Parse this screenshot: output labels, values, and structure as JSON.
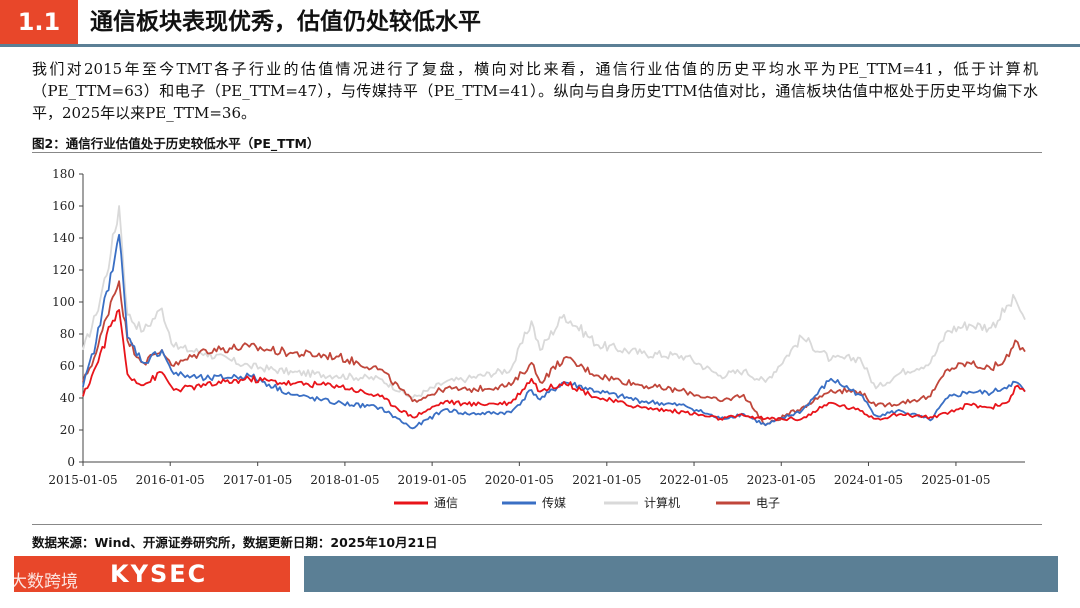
{
  "header": {
    "section_number": "1.1",
    "title": "通信板块表现优秀，估值仍处较低水平"
  },
  "intro_text": "我们对2015年至今TMT各子行业的估值情况进行了复盘，横向对比来看，通信行业估值的历史平均水平为PE_TTM=41，低于计算机（PE_TTM=63）和电子（PE_TTM=47），与传媒持平（PE_TTM=41）。纵向与自身历史TTM估值对比，通信板块估值中枢处于历史平均偏下水平，2025年以来PE_TTM=36。",
  "figure_caption": "图2：通信行业估值处于历史较低水平（PE_TTM）",
  "source_text": "数据来源：Wind、开源证券研究所，数据更新日期：2025年10月21日",
  "footer": {
    "brand": "KYSEC",
    "watermark": "大数跨境"
  },
  "colors": {
    "accent": "#e8472a",
    "bar": "#5b7f95",
    "tongxin": "#e8141a",
    "chuanmei": "#3a6fc4",
    "jisuanji": "#d9d9d9",
    "dianzi": "#c0463a"
  },
  "chart_data": {
    "type": "line",
    "title": "",
    "xlabel": "",
    "ylabel": "",
    "ylim": [
      0,
      180
    ],
    "yticks": [
      0,
      20,
      40,
      60,
      80,
      100,
      120,
      140,
      160,
      180
    ],
    "xlim": [
      "2015-01-05",
      "2025-10-21"
    ],
    "xticks": [
      "2015-01-05",
      "2016-01-05",
      "2017-01-05",
      "2018-01-05",
      "2019-01-05",
      "2020-01-05",
      "2021-01-05",
      "2022-01-05",
      "2023-01-05",
      "2024-01-05",
      "2025-01-05"
    ],
    "grid": false,
    "legend_position": "bottom",
    "series": [
      {
        "name": "计算机",
        "color": "#d9d9d9",
        "x": [
          "2015-01-05",
          "2015-03-01",
          "2015-05-01",
          "2015-06-05",
          "2015-07-10",
          "2015-09-15",
          "2015-12-01",
          "2016-01-20",
          "2016-06-01",
          "2016-12-01",
          "2017-06-01",
          "2017-12-01",
          "2018-06-01",
          "2018-10-15",
          "2019-03-01",
          "2019-06-01",
          "2019-12-01",
          "2020-02-25",
          "2020-04-01",
          "2020-07-10",
          "2020-12-01",
          "2021-06-01",
          "2021-12-01",
          "2022-04-25",
          "2022-08-01",
          "2022-10-31",
          "2023-04-01",
          "2023-08-01",
          "2023-12-01",
          "2024-02-05",
          "2024-05-20",
          "2024-09-20",
          "2024-12-01",
          "2025-03-01",
          "2025-06-01",
          "2025-08-15",
          "2025-09-10",
          "2025-10-21"
        ],
        "y": [
          70,
          92,
          130,
          160,
          92,
          82,
          96,
          72,
          68,
          60,
          56,
          54,
          52,
          40,
          50,
          52,
          58,
          88,
          70,
          92,
          73,
          68,
          66,
          54,
          57,
          50,
          78,
          64,
          65,
          46,
          56,
          62,
          82,
          86,
          84,
          98,
          102,
          89
        ]
      },
      {
        "name": "电子",
        "color": "#c0463a",
        "x": [
          "2015-01-05",
          "2015-03-01",
          "2015-05-01",
          "2015-06-05",
          "2015-07-10",
          "2015-09-15",
          "2015-12-01",
          "2016-01-20",
          "2016-06-01",
          "2016-12-01",
          "2017-06-01",
          "2017-12-01",
          "2018-06-01",
          "2018-10-15",
          "2019-03-01",
          "2019-06-01",
          "2019-12-01",
          "2020-02-25",
          "2020-04-01",
          "2020-07-10",
          "2020-12-01",
          "2021-06-01",
          "2021-12-01",
          "2022-04-25",
          "2022-08-01",
          "2022-10-31",
          "2023-04-01",
          "2023-08-01",
          "2023-12-01",
          "2024-02-05",
          "2024-05-20",
          "2024-09-20",
          "2024-12-01",
          "2025-03-01",
          "2025-06-01",
          "2025-08-15",
          "2025-09-10",
          "2025-10-21"
        ],
        "y": [
          50,
          68,
          100,
          113,
          76,
          62,
          70,
          60,
          70,
          72,
          68,
          66,
          58,
          38,
          46,
          45,
          48,
          62,
          50,
          65,
          54,
          48,
          44,
          38,
          42,
          23,
          34,
          45,
          44,
          35,
          37,
          41,
          58,
          62,
          58,
          66,
          76,
          69
        ]
      },
      {
        "name": "传媒",
        "color": "#3a6fc4",
        "x": [
          "2015-01-05",
          "2015-03-01",
          "2015-05-01",
          "2015-06-05",
          "2015-07-10",
          "2015-09-15",
          "2015-12-01",
          "2016-01-20",
          "2016-06-01",
          "2016-12-01",
          "2017-06-01",
          "2017-12-01",
          "2018-06-01",
          "2018-10-15",
          "2019-03-01",
          "2019-06-01",
          "2019-12-01",
          "2020-02-25",
          "2020-04-01",
          "2020-07-10",
          "2020-12-01",
          "2021-06-01",
          "2021-12-01",
          "2022-04-25",
          "2022-08-01",
          "2022-10-31",
          "2023-04-01",
          "2023-08-01",
          "2023-12-01",
          "2024-02-05",
          "2024-05-20",
          "2024-09-20",
          "2024-12-01",
          "2025-03-01",
          "2025-06-01",
          "2025-08-15",
          "2025-09-10",
          "2025-10-21"
        ],
        "y": [
          47,
          75,
          118,
          142,
          78,
          62,
          70,
          55,
          52,
          54,
          42,
          37,
          34,
          21,
          33,
          30,
          31,
          45,
          39,
          50,
          44,
          38,
          35,
          27,
          30,
          23,
          32,
          52,
          42,
          29,
          32,
          26,
          40,
          44,
          43,
          48,
          50,
          44
        ]
      },
      {
        "name": "通信",
        "color": "#e8141a",
        "x": [
          "2015-01-05",
          "2015-03-01",
          "2015-05-01",
          "2015-06-05",
          "2015-07-10",
          "2015-09-15",
          "2015-12-01",
          "2016-01-20",
          "2016-06-01",
          "2016-12-01",
          "2017-06-01",
          "2017-12-01",
          "2018-06-01",
          "2018-10-15",
          "2019-03-01",
          "2019-06-01",
          "2019-12-01",
          "2020-02-25",
          "2020-04-01",
          "2020-07-10",
          "2020-12-01",
          "2021-06-01",
          "2021-12-01",
          "2022-04-25",
          "2022-08-01",
          "2022-10-31",
          "2023-04-01",
          "2023-08-01",
          "2023-12-01",
          "2024-02-05",
          "2024-05-20",
          "2024-09-20",
          "2024-12-01",
          "2025-03-01",
          "2025-06-01",
          "2025-08-15",
          "2025-09-10",
          "2025-10-21"
        ],
        "y": [
          41,
          60,
          85,
          95,
          55,
          48,
          56,
          45,
          48,
          52,
          49,
          48,
          41,
          28,
          38,
          36,
          37,
          52,
          44,
          50,
          40,
          34,
          31,
          27,
          29,
          27,
          27,
          37,
          32,
          27,
          30,
          28,
          30,
          36,
          34,
          38,
          47,
          44
        ]
      }
    ],
    "legend": [
      "通信",
      "传媒",
      "计算机",
      "电子"
    ]
  }
}
